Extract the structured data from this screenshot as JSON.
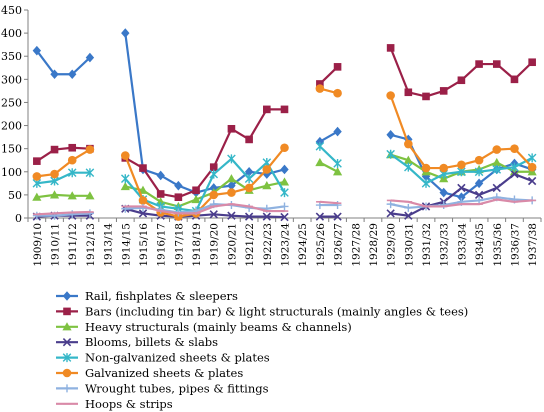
{
  "chart_data": {
    "type": "line",
    "title": "",
    "xlabel": "",
    "ylabel": "",
    "ylim": [
      0,
      450
    ],
    "yticks": [
      0,
      50,
      100,
      150,
      200,
      250,
      300,
      350,
      400,
      450
    ],
    "grid": false,
    "legend_position": "bottom",
    "categories": [
      "1909/10",
      "1910/11",
      "1911/12",
      "1912/13",
      "1913/14",
      "1914/15",
      "1915/16",
      "1916/17",
      "1917/18",
      "1918/19",
      "1919/20",
      "1920/21",
      "1921/22",
      "1922/23",
      "1923/24",
      "1924/25",
      "1925/26",
      "1926/27",
      "1927/28",
      "1928/29",
      "1929/30",
      "1930/31",
      "1931/32",
      "1932/33",
      "1933/34",
      "1934/35",
      "1935/36",
      "1936/37",
      "1937/38"
    ],
    "series": [
      {
        "name": "Rail, fishplates & sleepers",
        "color": "#3a78c8",
        "marker": "diamond",
        "values": [
          362,
          311,
          311,
          347,
          null,
          400,
          105,
          92,
          70,
          55,
          65,
          70,
          100,
          95,
          105,
          null,
          165,
          187,
          null,
          null,
          180,
          170,
          90,
          55,
          45,
          75,
          105,
          118,
          105
        ]
      },
      {
        "name": "Bars (including tin bar) & light structurals (mainly angles & tees)",
        "color": "#9b2048",
        "marker": "square",
        "values": [
          123,
          148,
          152,
          150,
          null,
          130,
          108,
          52,
          45,
          60,
          110,
          193,
          170,
          235,
          235,
          null,
          290,
          327,
          null,
          null,
          368,
          272,
          263,
          275,
          298,
          333,
          333,
          300,
          337
        ]
      },
      {
        "name": "Heavy structurals (mainly beams & channels)",
        "color": "#7ec241",
        "marker": "triangle",
        "values": [
          45,
          50,
          48,
          48,
          null,
          68,
          60,
          35,
          25,
          40,
          55,
          85,
          60,
          70,
          78,
          null,
          120,
          100,
          null,
          null,
          137,
          125,
          100,
          85,
          100,
          105,
          120,
          100,
          100
        ]
      },
      {
        "name": "Blooms, billets & slabs",
        "color": "#4a3d8c",
        "marker": "x",
        "values": [
          3,
          5,
          5,
          5,
          null,
          20,
          10,
          5,
          3,
          5,
          8,
          5,
          3,
          3,
          2,
          null,
          3,
          3,
          null,
          null,
          10,
          5,
          25,
          35,
          65,
          50,
          65,
          95,
          80
        ]
      },
      {
        "name": "Non-galvanized sheets & plates",
        "color": "#35b7c8",
        "marker": "asterisk",
        "values": [
          75,
          80,
          98,
          98,
          null,
          85,
          40,
          25,
          20,
          15,
          95,
          128,
          85,
          120,
          55,
          null,
          155,
          118,
          null,
          null,
          138,
          110,
          75,
          95,
          100,
          100,
          105,
          110,
          130
        ]
      },
      {
        "name": "Galvanized sheets & plates",
        "color": "#f08a24",
        "marker": "circle",
        "values": [
          90,
          95,
          125,
          148,
          null,
          135,
          38,
          12,
          3,
          10,
          50,
          55,
          65,
          105,
          152,
          null,
          280,
          270,
          null,
          null,
          265,
          160,
          108,
          108,
          115,
          125,
          148,
          150,
          110
        ]
      },
      {
        "name": "Wrought tubes, pipes & fittings",
        "color": "#8fb2e0",
        "marker": "plus",
        "values": [
          5,
          5,
          8,
          10,
          null,
          20,
          22,
          18,
          12,
          15,
          30,
          28,
          22,
          20,
          25,
          null,
          28,
          28,
          null,
          null,
          30,
          22,
          25,
          28,
          35,
          38,
          45,
          40,
          38
        ]
      },
      {
        "name": "Hoops & strips",
        "color": "#d98aa8",
        "marker": "dash",
        "values": [
          8,
          10,
          12,
          13,
          null,
          25,
          25,
          15,
          10,
          10,
          25,
          30,
          25,
          15,
          15,
          null,
          35,
          32,
          null,
          null,
          38,
          35,
          25,
          25,
          30,
          30,
          40,
          35,
          38
        ]
      }
    ]
  }
}
